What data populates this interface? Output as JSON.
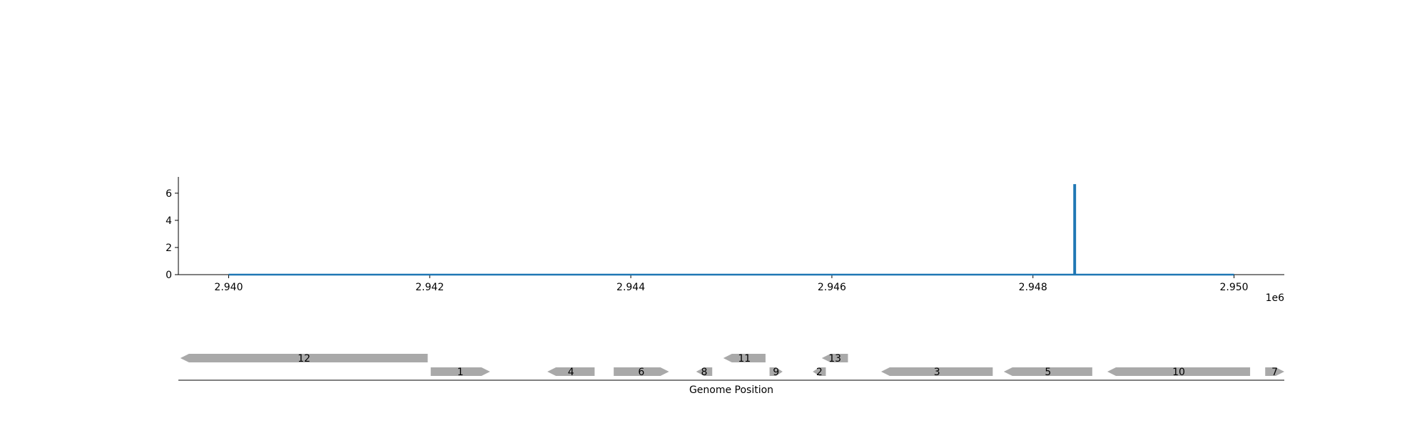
{
  "chart_data": {
    "type": "line",
    "title": "",
    "ylabel": "",
    "xlabel": "Genome Position",
    "x_offset_label": "1e6",
    "xlim": [
      2939500,
      2950500
    ],
    "ylim": [
      0,
      7.2
    ],
    "xticks": [
      2940000,
      2942000,
      2944000,
      2946000,
      2948000,
      2950000
    ],
    "xtick_labels": [
      "2.940",
      "2.942",
      "2.944",
      "2.946",
      "2.948",
      "2.950"
    ],
    "yticks": [
      0,
      2,
      4,
      6
    ],
    "ytick_labels": [
      "0",
      "2",
      "4",
      "6"
    ],
    "grid": false,
    "series": [
      {
        "x": [
          2940000,
          2948410,
          2948410,
          2948420,
          2948420,
          2950000
        ],
        "y": [
          0,
          0,
          6.6,
          6.6,
          0,
          0
        ]
      }
    ],
    "genes": [
      {
        "label": "12",
        "start": 2939520,
        "end": 2941980,
        "strand": "-",
        "row": 1
      },
      {
        "label": "1",
        "start": 2942010,
        "end": 2942600,
        "strand": "+",
        "row": 0
      },
      {
        "label": "4",
        "start": 2943170,
        "end": 2943640,
        "strand": "-",
        "row": 0
      },
      {
        "label": "6",
        "start": 2943830,
        "end": 2944380,
        "strand": "+",
        "row": 0
      },
      {
        "label": "8",
        "start": 2944650,
        "end": 2944810,
        "strand": "-",
        "row": 0
      },
      {
        "label": "11",
        "start": 2944920,
        "end": 2945340,
        "strand": "-",
        "row": 1
      },
      {
        "label": "9",
        "start": 2945380,
        "end": 2945510,
        "strand": "+",
        "row": 0
      },
      {
        "label": "2",
        "start": 2945810,
        "end": 2945940,
        "strand": "-",
        "row": 0
      },
      {
        "label": "13",
        "start": 2945900,
        "end": 2946160,
        "strand": "-",
        "row": 1
      },
      {
        "label": "3",
        "start": 2946490,
        "end": 2947600,
        "strand": "-",
        "row": 0
      },
      {
        "label": "5",
        "start": 2947710,
        "end": 2948590,
        "strand": "-",
        "row": 0
      },
      {
        "label": "10",
        "start": 2948740,
        "end": 2950160,
        "strand": "-",
        "row": 0
      },
      {
        "label": "7",
        "start": 2950310,
        "end": 2950500,
        "strand": "+",
        "row": 0
      }
    ],
    "colors": {
      "line": "#1f77b4",
      "gene": "#a9a9a9",
      "axis": "#000000"
    }
  }
}
